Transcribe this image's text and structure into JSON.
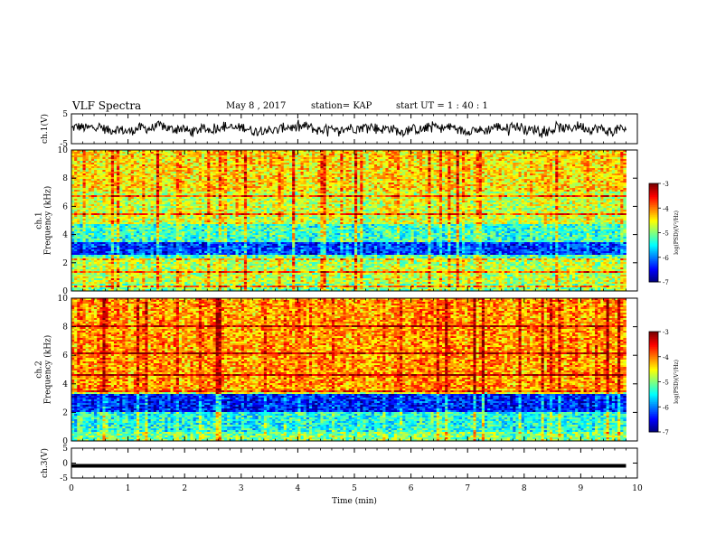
{
  "header": {
    "title": "VLF Spectra",
    "date": "May 8  , 2017",
    "station": "station= KAP",
    "start": "start  UT  =   1 : 40 : 1"
  },
  "chart_data": [
    {
      "type": "line",
      "panel": "ch1-waveform",
      "ylabel": "ch.1(V)",
      "ylim": [
        -5,
        5
      ],
      "yticks": [
        "5",
        "-5"
      ],
      "xlim": [
        0,
        10
      ],
      "data_extent_min": [
        0,
        9.8
      ],
      "description_values": "noisy amplitude trace fluctuating roughly between -3 V and +3 V"
    },
    {
      "type": "heatmap",
      "panel": "ch1-spectrogram",
      "ylabel": "ch.1\nFrequency (kHz)",
      "ylim": [
        0,
        10
      ],
      "yticks": [
        "0",
        "2",
        "4",
        "6",
        "8",
        "10"
      ],
      "xlim": [
        0,
        10
      ],
      "colorbar": {
        "label": "log(PSD)(V²/Hz)",
        "range": [
          -7,
          -3
        ],
        "ticks": [
          "-3",
          "-4",
          "-5",
          "-6",
          "-7"
        ]
      },
      "bands_khz": [
        {
          "from": 0,
          "to": 0.5,
          "level": -5.0
        },
        {
          "from": 0.5,
          "to": 1.0,
          "level": -4.7
        },
        {
          "from": 1.0,
          "to": 2.2,
          "level": -4.8
        },
        {
          "from": 2.2,
          "to": 2.6,
          "level": -5.2
        },
        {
          "from": 2.6,
          "to": 3.5,
          "level": -6.3
        },
        {
          "from": 3.5,
          "to": 4.8,
          "level": -5.3
        },
        {
          "from": 4.8,
          "to": 7.0,
          "level": -4.7
        },
        {
          "from": 7.0,
          "to": 10.0,
          "level": -4.4
        }
      ],
      "lines_khz": [
        0.3,
        1.4,
        2.3,
        5.5,
        6.7
      ]
    },
    {
      "type": "heatmap",
      "panel": "ch2-spectrogram",
      "ylabel": "ch.2\nFrequency (kHz)",
      "ylim": [
        0,
        10
      ],
      "yticks": [
        "0",
        "2",
        "4",
        "6",
        "8",
        "10"
      ],
      "xlim": [
        0,
        10
      ],
      "colorbar": {
        "label": "log(PSD)(V²/Hz)",
        "range": [
          -7,
          -3
        ],
        "ticks": [
          "-3",
          "-4",
          "-5",
          "-6",
          "-7"
        ]
      },
      "bands_khz": [
        {
          "from": 0,
          "to": 0.6,
          "level": -5.0
        },
        {
          "from": 0.6,
          "to": 2.0,
          "level": -5.4
        },
        {
          "from": 2.0,
          "to": 3.3,
          "level": -6.4
        },
        {
          "from": 3.3,
          "to": 3.6,
          "level": -4.6
        },
        {
          "from": 3.6,
          "to": 10.0,
          "level": -4.1
        }
      ],
      "lines_khz": [
        3.5,
        4.6,
        6.1,
        8.0
      ]
    },
    {
      "type": "line",
      "panel": "ch3-waveform",
      "ylabel": "ch.3(V)",
      "ylim": [
        -5,
        5
      ],
      "yticks": [
        "5",
        "0",
        "-5"
      ],
      "xlim": [
        0,
        10
      ],
      "constant_value": 0
    }
  ],
  "xaxis": {
    "label": "Time  (min)",
    "ticks": [
      "0",
      "1",
      "2",
      "3",
      "4",
      "5",
      "6",
      "7",
      "8",
      "9",
      "10"
    ]
  }
}
